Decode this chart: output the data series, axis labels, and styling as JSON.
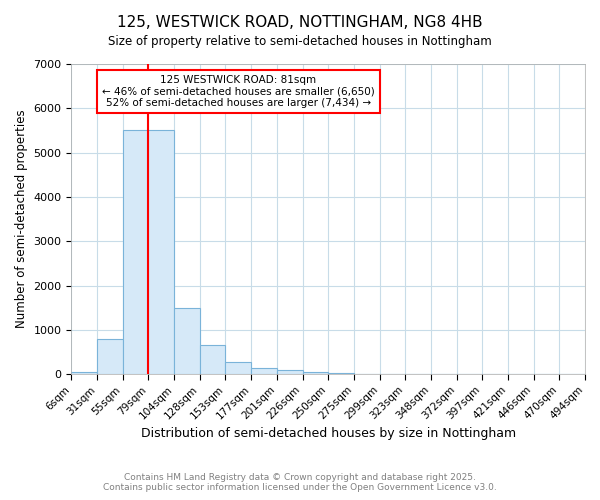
{
  "title": "125, WESTWICK ROAD, NOTTINGHAM, NG8 4HB",
  "subtitle": "Size of property relative to semi-detached houses in Nottingham",
  "xlabel": "Distribution of semi-detached houses by size in Nottingham",
  "ylabel": "Number of semi-detached properties",
  "bin_labels": [
    "6sqm",
    "31sqm",
    "55sqm",
    "79sqm",
    "104sqm",
    "128sqm",
    "153sqm",
    "177sqm",
    "201sqm",
    "226sqm",
    "250sqm",
    "275sqm",
    "299sqm",
    "323sqm",
    "348sqm",
    "372sqm",
    "397sqm",
    "421sqm",
    "446sqm",
    "470sqm",
    "494sqm"
  ],
  "bar_heights": [
    50,
    800,
    5500,
    5500,
    1500,
    650,
    270,
    140,
    100,
    50,
    30,
    5,
    0,
    0,
    0,
    0,
    0,
    0,
    0,
    0
  ],
  "bar_color": "#d6e9f8",
  "bar_edge_color": "#7ab3d9",
  "red_line_x": 3,
  "red_line_label": "125 WESTWICK ROAD: 81sqm",
  "annotation_line1": "← 46% of semi-detached houses are smaller (6,650)",
  "annotation_line2": "52% of semi-detached houses are larger (7,434) →",
  "annotation_box_color": "white",
  "annotation_box_edge": "red",
  "ylim": [
    0,
    7000
  ],
  "yticks": [
    0,
    1000,
    2000,
    3000,
    4000,
    5000,
    6000,
    7000
  ],
  "footer_line1": "Contains HM Land Registry data © Crown copyright and database right 2025.",
  "footer_line2": "Contains public sector information licensed under the Open Government Licence v3.0.",
  "bg_color": "#ffffff",
  "grid_color": "#c8dce8",
  "n_bins": 20
}
